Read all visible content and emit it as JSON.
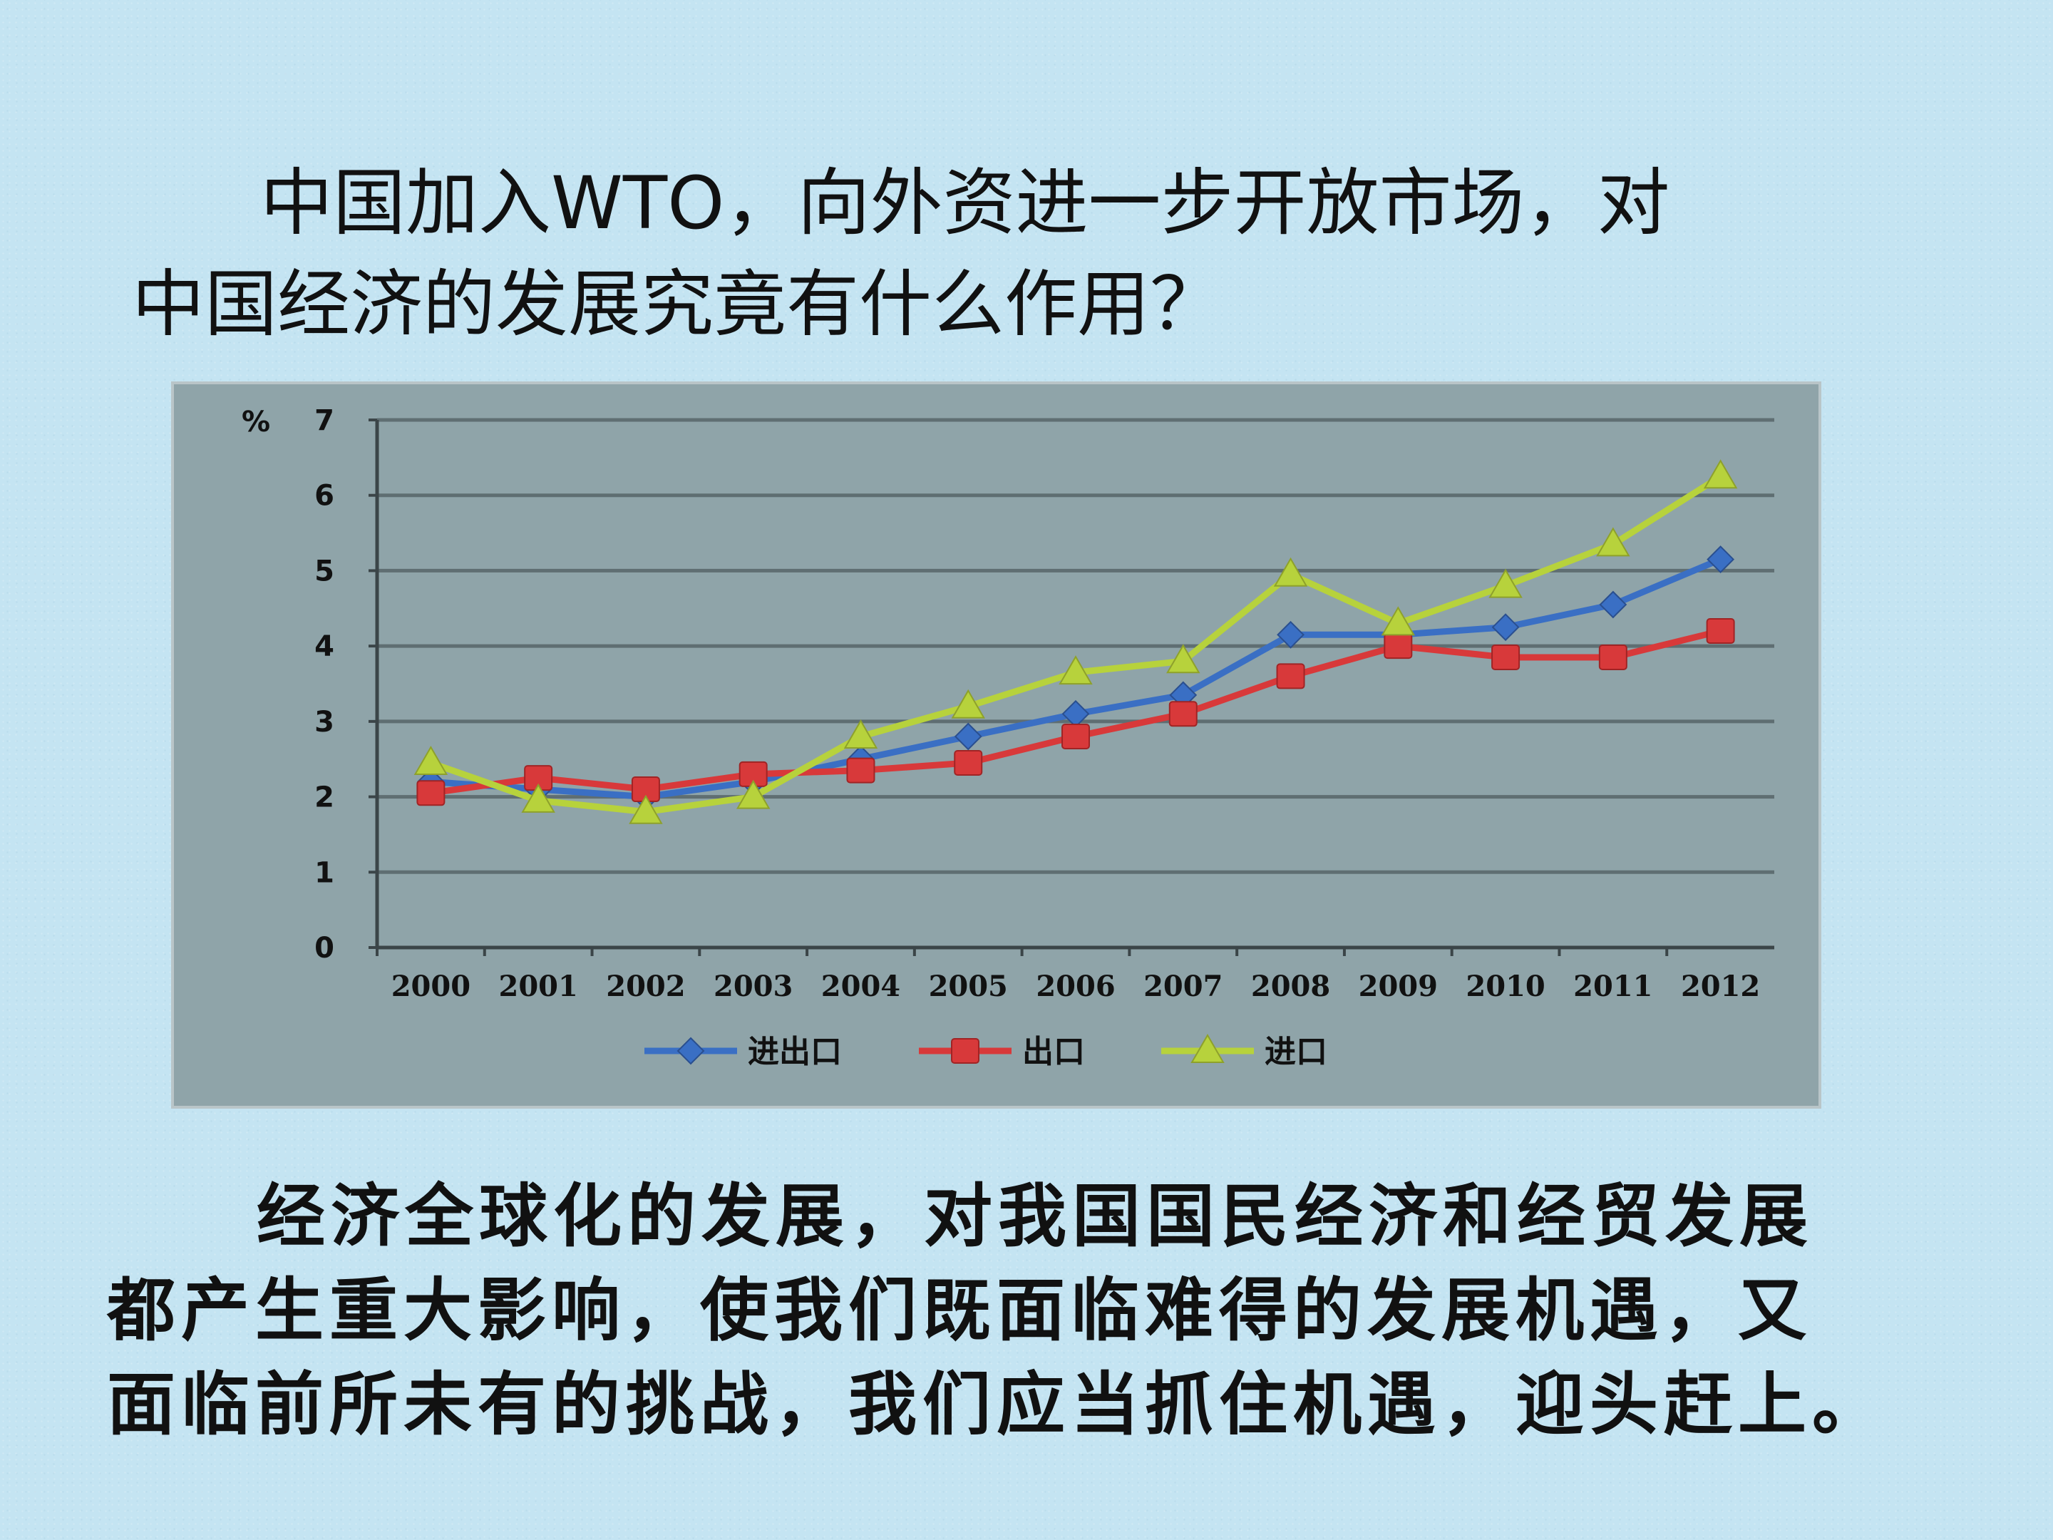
{
  "question": {
    "line1": "中国加入WTO，向外资进一步开放市场，对",
    "line2": "中国经济的发展究竟有什么作用？"
  },
  "answer": {
    "line1": "经济全球化的发展，对我国国民经济和经贸发展",
    "line2": "都产生重大影响，使我们既面临难得的发展机遇，又",
    "line3": "面临前所未有的挑战，我们应当抓住机遇，迎头赶上。"
  },
  "chart_data": {
    "type": "line",
    "ylabel": "%",
    "ylim": [
      0,
      7
    ],
    "yticks": [
      0,
      1,
      2,
      3,
      4,
      5,
      6,
      7
    ],
    "grid": true,
    "legend_position": "bottom",
    "categories": [
      "2000",
      "2001",
      "2002",
      "2003",
      "2004",
      "2005",
      "2006",
      "2007",
      "2008",
      "2009",
      "2010",
      "2011",
      "2012"
    ],
    "series": [
      {
        "name": "进出口",
        "color": "#3a6fc4",
        "marker": "diamond",
        "values": [
          2.2,
          2.1,
          2.0,
          2.2,
          2.5,
          2.8,
          3.1,
          3.35,
          4.15,
          4.15,
          4.25,
          4.55,
          5.15
        ]
      },
      {
        "name": "出口",
        "color": "#d8393a",
        "marker": "square",
        "values": [
          2.05,
          2.25,
          2.1,
          2.3,
          2.35,
          2.45,
          2.8,
          3.1,
          3.6,
          4.0,
          3.85,
          3.85,
          4.2
        ]
      },
      {
        "name": "进口",
        "color": "#b7d23c",
        "marker": "triangle",
        "values": [
          2.45,
          1.95,
          1.8,
          2.0,
          2.8,
          3.2,
          3.65,
          3.8,
          4.95,
          4.3,
          4.8,
          5.35,
          6.25
        ]
      }
    ]
  }
}
